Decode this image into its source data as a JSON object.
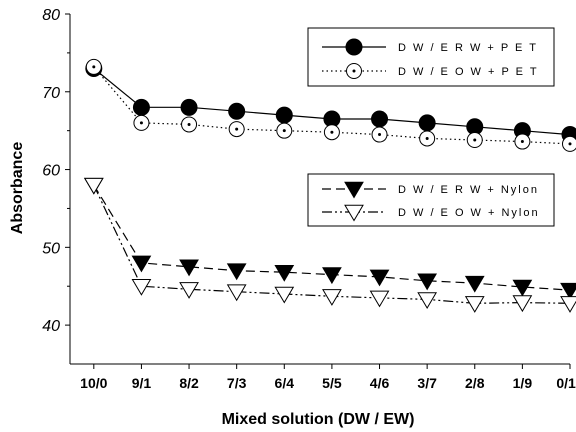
{
  "chart_data": {
    "type": "line",
    "title": "",
    "xlabel": "Mixed solution (DW / EW)",
    "ylabel": "Absorbance",
    "categories": [
      "10/0",
      "9/1",
      "8/2",
      "7/3",
      "6/4",
      "5/5",
      "4/6",
      "3/7",
      "2/8",
      "1/9",
      "0/10"
    ],
    "ylim": [
      35,
      80
    ],
    "yticks": [
      40,
      50,
      60,
      70,
      80
    ],
    "grid": false,
    "legends": [
      {
        "placement": "top-right",
        "entries": [
          0,
          1
        ]
      },
      {
        "placement": "middle-right",
        "entries": [
          2,
          3
        ]
      }
    ],
    "series": [
      {
        "name": "D W / E R W + P E T",
        "marker": "filled-circle",
        "line": "solid",
        "values": [
          73,
          68,
          68,
          67.5,
          67,
          66.5,
          66.5,
          66,
          65.5,
          65,
          64.5
        ]
      },
      {
        "name": "D W / E O W + P E T",
        "marker": "dotted-circle",
        "line": "dotted",
        "values": [
          73.2,
          66,
          65.8,
          65.2,
          65,
          64.8,
          64.5,
          64,
          63.8,
          63.6,
          63.3
        ]
      },
      {
        "name": "D W / E R W + Nylon",
        "marker": "filled-triangle-down",
        "line": "dashed",
        "values": [
          58,
          48,
          47.5,
          47,
          46.8,
          46.5,
          46.2,
          45.7,
          45.4,
          44.9,
          44.5
        ]
      },
      {
        "name": "D W / E O W + Nylon",
        "marker": "open-triangle-down",
        "line": "dash-dot-dot",
        "values": [
          58,
          45,
          44.6,
          44.3,
          44,
          43.7,
          43.5,
          43.3,
          42.8,
          42.9,
          42.8
        ]
      }
    ]
  }
}
